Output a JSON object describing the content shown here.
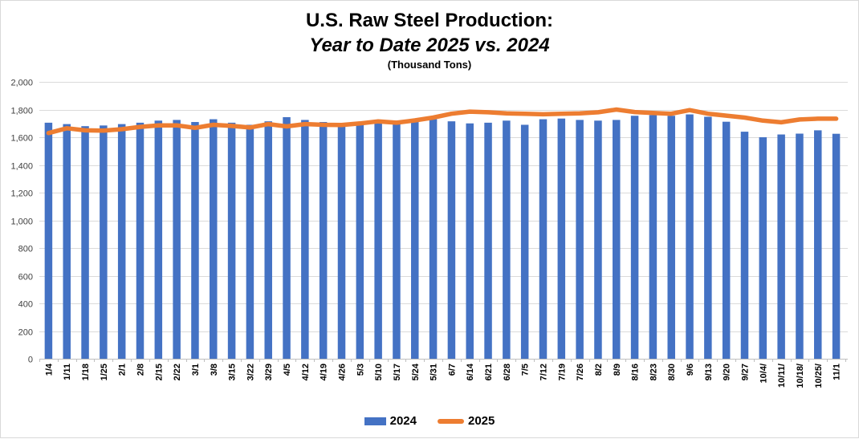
{
  "header": {
    "title_line1": "U.S. Raw Steel Production:",
    "title_line2": "Year to Date 2025 vs. 2024",
    "units_label": "(Thousand Tons)"
  },
  "legend": {
    "position": "bottom",
    "items": [
      {
        "label": "2024",
        "marker": "bar-swatch",
        "color": "#4472c4"
      },
      {
        "label": "2025",
        "marker": "line-swatch",
        "color": "#ed7d31"
      }
    ]
  },
  "chart_data": {
    "type": "bar",
    "combo": "bars with overlaid line",
    "title": "U.S. Raw Steel Production:",
    "subtitle": "Year to Date 2025 vs. 2024",
    "units_label": "(Thousand Tons)",
    "xlabel": "",
    "ylabel": "",
    "ylim": [
      0,
      2000
    ],
    "ytick_step": 200,
    "ytick_labels": [
      "0",
      "200",
      "400",
      "600",
      "800",
      "1,000",
      "1,200",
      "1,400",
      "1,600",
      "1,800",
      "2,000"
    ],
    "grid": "horizontal",
    "legend_position": "bottom",
    "categories": [
      "1/4",
      "1/11",
      "1/18",
      "1/25",
      "2/1",
      "2/8",
      "2/15",
      "2/22",
      "3/1",
      "3/8",
      "3/15",
      "3/22",
      "3/29",
      "4/5",
      "4/12",
      "4/19",
      "4/26",
      "5/3",
      "5/10",
      "5/17",
      "5/24",
      "5/31",
      "6/7",
      "6/14",
      "6/21",
      "6/28",
      "7/5",
      "7/12",
      "7/19",
      "7/26",
      "8/2",
      "8/9",
      "8/16",
      "8/23",
      "8/30",
      "9/6",
      "9/13",
      "9/20",
      "9/27",
      "10/4/",
      "10/11/",
      "10/18/",
      "10/25/",
      "11/1"
    ],
    "series": [
      {
        "name": "2024",
        "type": "bar",
        "color": "#4472c4",
        "values": [
          1705,
          1695,
          1680,
          1685,
          1695,
          1705,
          1720,
          1725,
          1710,
          1730,
          1705,
          1690,
          1715,
          1745,
          1725,
          1710,
          1690,
          1700,
          1715,
          1720,
          1710,
          1730,
          1715,
          1700,
          1705,
          1720,
          1690,
          1730,
          1735,
          1725,
          1720,
          1725,
          1755,
          1760,
          1755,
          1765,
          1748,
          1712,
          1640,
          1600,
          1620,
          1626,
          1650,
          1625
        ]
      },
      {
        "name": "2025",
        "type": "line",
        "color": "#ed7d31",
        "values": [
          1630,
          1665,
          1650,
          1648,
          1658,
          1675,
          1685,
          1686,
          1668,
          1690,
          1682,
          1670,
          1695,
          1678,
          1695,
          1690,
          1688,
          1700,
          1715,
          1705,
          1722,
          1742,
          1770,
          1785,
          1780,
          1772,
          1770,
          1766,
          1770,
          1772,
          1780,
          1800,
          1782,
          1775,
          1770,
          1796,
          1770,
          1756,
          1742,
          1720,
          1708,
          1728,
          1734,
          1734
        ]
      }
    ],
    "colors": {
      "gridline": "#dadada",
      "axis_line": "#bfbfbf",
      "y_tick_text": "#404040",
      "x_tick_text": "#000000"
    }
  }
}
